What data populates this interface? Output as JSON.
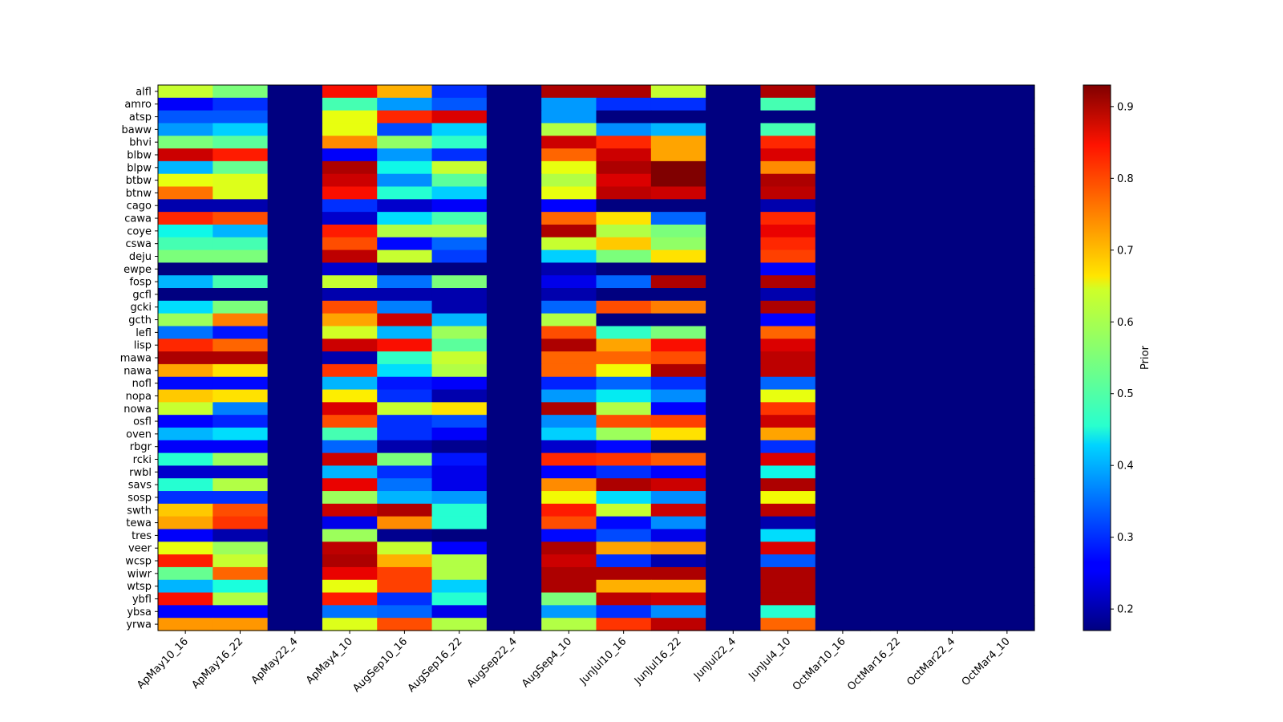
{
  "chart_data": {
    "type": "heatmap",
    "title": "",
    "xlabel": "",
    "ylabel": "",
    "colorbar_label": "Prior",
    "colormap": "jet",
    "value_range": [
      0.17,
      0.93
    ],
    "colorbar_ticks": [
      "0.2",
      "0.3",
      "0.4",
      "0.5",
      "0.6",
      "0.7",
      "0.8",
      "0.9"
    ],
    "x_categories": [
      "ApMay10_16",
      "ApMay16_22",
      "ApMay22_4",
      "ApMay4_10",
      "AugSep10_16",
      "AugSep16_22",
      "AugSep22_4",
      "AugSep4_10",
      "JunJul10_16",
      "JunJul16_22",
      "JunJul22_4",
      "JunJul4_10",
      "OctMar10_16",
      "OctMar16_22",
      "OctMar22_4",
      "OctMar4_10"
    ],
    "y_categories": [
      "alfl",
      "amro",
      "atsp",
      "baww",
      "bhvi",
      "blbw",
      "blpw",
      "btbw",
      "btnw",
      "cago",
      "cawa",
      "coye",
      "cswa",
      "deju",
      "ewpe",
      "fosp",
      "gcfl",
      "gcki",
      "gcth",
      "lefl",
      "lisp",
      "mawa",
      "nawa",
      "nofl",
      "nopa",
      "nowa",
      "osfl",
      "oven",
      "rbgr",
      "rcki",
      "rwbl",
      "savs",
      "sosp",
      "swth",
      "tewa",
      "tres",
      "veer",
      "wcsp",
      "wiwr",
      "wtsp",
      "ybfl",
      "ybsa",
      "yrwa"
    ],
    "values": [
      [
        0.62,
        0.55,
        0.17,
        0.85,
        0.72,
        0.3,
        0.17,
        0.9,
        0.9,
        0.62,
        0.17,
        0.9,
        0.17,
        0.17,
        0.17,
        0.17
      ],
      [
        0.25,
        0.3,
        0.17,
        0.5,
        0.38,
        0.33,
        0.17,
        0.38,
        0.3,
        0.3,
        0.17,
        0.5,
        0.17,
        0.17,
        0.17,
        0.17
      ],
      [
        0.33,
        0.33,
        0.17,
        0.65,
        0.83,
        0.87,
        0.17,
        0.38,
        0.17,
        0.17,
        0.17,
        0.17,
        0.17,
        0.17,
        0.17,
        0.17
      ],
      [
        0.38,
        0.42,
        0.17,
        0.65,
        0.32,
        0.42,
        0.17,
        0.6,
        0.37,
        0.4,
        0.17,
        0.5,
        0.17,
        0.17,
        0.17,
        0.17
      ],
      [
        0.55,
        0.52,
        0.17,
        0.75,
        0.57,
        0.48,
        0.17,
        0.88,
        0.83,
        0.73,
        0.17,
        0.83,
        0.17,
        0.17,
        0.17,
        0.17
      ],
      [
        0.88,
        0.84,
        0.17,
        0.25,
        0.38,
        0.3,
        0.17,
        0.78,
        0.88,
        0.73,
        0.17,
        0.87,
        0.17,
        0.17,
        0.17,
        0.17
      ],
      [
        0.4,
        0.53,
        0.17,
        0.9,
        0.45,
        0.62,
        0.17,
        0.65,
        0.9,
        0.93,
        0.17,
        0.75,
        0.17,
        0.17,
        0.17,
        0.17
      ],
      [
        0.65,
        0.64,
        0.17,
        0.88,
        0.37,
        0.52,
        0.17,
        0.6,
        0.87,
        0.93,
        0.17,
        0.9,
        0.17,
        0.17,
        0.17,
        0.17
      ],
      [
        0.77,
        0.64,
        0.17,
        0.85,
        0.47,
        0.42,
        0.17,
        0.65,
        0.89,
        0.88,
        0.17,
        0.89,
        0.17,
        0.17,
        0.17,
        0.17
      ],
      [
        0.2,
        0.2,
        0.17,
        0.3,
        0.22,
        0.25,
        0.17,
        0.26,
        0.17,
        0.17,
        0.17,
        0.2,
        0.17,
        0.17,
        0.17,
        0.17
      ],
      [
        0.83,
        0.8,
        0.17,
        0.22,
        0.43,
        0.5,
        0.17,
        0.78,
        0.68,
        0.34,
        0.17,
        0.83,
        0.17,
        0.17,
        0.17,
        0.17
      ],
      [
        0.45,
        0.4,
        0.17,
        0.84,
        0.6,
        0.6,
        0.17,
        0.9,
        0.6,
        0.55,
        0.17,
        0.86,
        0.17,
        0.17,
        0.17,
        0.17
      ],
      [
        0.5,
        0.5,
        0.17,
        0.8,
        0.27,
        0.34,
        0.17,
        0.62,
        0.7,
        0.57,
        0.17,
        0.83,
        0.17,
        0.17,
        0.17,
        0.17
      ],
      [
        0.55,
        0.55,
        0.17,
        0.89,
        0.62,
        0.31,
        0.17,
        0.42,
        0.55,
        0.68,
        0.17,
        0.81,
        0.17,
        0.17,
        0.17,
        0.17
      ],
      [
        0.17,
        0.17,
        0.17,
        0.22,
        0.17,
        0.17,
        0.17,
        0.2,
        0.17,
        0.17,
        0.17,
        0.25,
        0.17,
        0.17,
        0.17,
        0.17
      ],
      [
        0.4,
        0.5,
        0.17,
        0.62,
        0.35,
        0.55,
        0.17,
        0.24,
        0.34,
        0.9,
        0.17,
        0.9,
        0.17,
        0.17,
        0.17,
        0.17
      ],
      [
        0.17,
        0.17,
        0.17,
        0.2,
        0.2,
        0.2,
        0.17,
        0.2,
        0.17,
        0.17,
        0.17,
        0.2,
        0.17,
        0.17,
        0.17,
        0.17
      ],
      [
        0.43,
        0.55,
        0.17,
        0.8,
        0.36,
        0.2,
        0.17,
        0.34,
        0.8,
        0.76,
        0.17,
        0.9,
        0.17,
        0.17,
        0.17,
        0.17
      ],
      [
        0.58,
        0.76,
        0.17,
        0.73,
        0.88,
        0.4,
        0.17,
        0.6,
        0.17,
        0.17,
        0.17,
        0.26,
        0.17,
        0.17,
        0.17,
        0.17
      ],
      [
        0.35,
        0.28,
        0.17,
        0.63,
        0.4,
        0.58,
        0.17,
        0.8,
        0.48,
        0.55,
        0.17,
        0.78,
        0.17,
        0.17,
        0.17,
        0.17
      ],
      [
        0.83,
        0.78,
        0.17,
        0.88,
        0.85,
        0.52,
        0.17,
        0.9,
        0.73,
        0.85,
        0.17,
        0.87,
        0.17,
        0.17,
        0.17,
        0.17
      ],
      [
        0.9,
        0.9,
        0.17,
        0.2,
        0.48,
        0.62,
        0.17,
        0.78,
        0.78,
        0.8,
        0.17,
        0.89,
        0.17,
        0.17,
        0.17,
        0.17
      ],
      [
        0.73,
        0.68,
        0.17,
        0.82,
        0.43,
        0.6,
        0.17,
        0.78,
        0.66,
        0.9,
        0.17,
        0.89,
        0.17,
        0.17,
        0.17,
        0.17
      ],
      [
        0.27,
        0.27,
        0.17,
        0.4,
        0.28,
        0.25,
        0.17,
        0.29,
        0.34,
        0.3,
        0.17,
        0.34,
        0.17,
        0.17,
        0.17,
        0.17
      ],
      [
        0.7,
        0.68,
        0.17,
        0.67,
        0.3,
        0.2,
        0.17,
        0.38,
        0.44,
        0.37,
        0.17,
        0.65,
        0.17,
        0.17,
        0.17,
        0.17
      ],
      [
        0.62,
        0.36,
        0.17,
        0.87,
        0.62,
        0.68,
        0.17,
        0.9,
        0.6,
        0.26,
        0.17,
        0.82,
        0.17,
        0.17,
        0.17,
        0.17
      ],
      [
        0.26,
        0.29,
        0.17,
        0.8,
        0.3,
        0.32,
        0.17,
        0.37,
        0.8,
        0.81,
        0.17,
        0.88,
        0.17,
        0.17,
        0.17,
        0.17
      ],
      [
        0.4,
        0.43,
        0.17,
        0.5,
        0.3,
        0.25,
        0.17,
        0.42,
        0.58,
        0.68,
        0.17,
        0.73,
        0.17,
        0.17,
        0.17,
        0.17
      ],
      [
        0.25,
        0.25,
        0.17,
        0.34,
        0.2,
        0.18,
        0.17,
        0.22,
        0.27,
        0.17,
        0.17,
        0.3,
        0.17,
        0.17,
        0.17,
        0.17
      ],
      [
        0.47,
        0.58,
        0.17,
        0.88,
        0.55,
        0.28,
        0.17,
        0.83,
        0.82,
        0.79,
        0.17,
        0.87,
        0.17,
        0.17,
        0.17,
        0.17
      ],
      [
        0.22,
        0.22,
        0.17,
        0.4,
        0.3,
        0.24,
        0.17,
        0.26,
        0.3,
        0.26,
        0.17,
        0.45,
        0.17,
        0.17,
        0.17,
        0.17
      ],
      [
        0.47,
        0.6,
        0.17,
        0.86,
        0.35,
        0.24,
        0.17,
        0.75,
        0.9,
        0.88,
        0.17,
        0.9,
        0.17,
        0.17,
        0.17,
        0.17
      ],
      [
        0.3,
        0.3,
        0.17,
        0.58,
        0.4,
        0.38,
        0.17,
        0.66,
        0.43,
        0.37,
        0.17,
        0.66,
        0.17,
        0.17,
        0.17,
        0.17
      ],
      [
        0.7,
        0.8,
        0.17,
        0.88,
        0.9,
        0.47,
        0.17,
        0.84,
        0.62,
        0.88,
        0.17,
        0.89,
        0.17,
        0.17,
        0.17,
        0.17
      ],
      [
        0.73,
        0.82,
        0.17,
        0.24,
        0.75,
        0.47,
        0.17,
        0.8,
        0.27,
        0.37,
        0.17,
        0.2,
        0.17,
        0.17,
        0.17,
        0.17
      ],
      [
        0.25,
        0.2,
        0.17,
        0.58,
        0.18,
        0.17,
        0.17,
        0.27,
        0.32,
        0.24,
        0.17,
        0.43,
        0.17,
        0.17,
        0.17,
        0.17
      ],
      [
        0.65,
        0.58,
        0.17,
        0.89,
        0.62,
        0.26,
        0.17,
        0.9,
        0.73,
        0.74,
        0.17,
        0.87,
        0.17,
        0.17,
        0.17,
        0.17
      ],
      [
        0.84,
        0.62,
        0.17,
        0.9,
        0.72,
        0.6,
        0.17,
        0.88,
        0.3,
        0.2,
        0.17,
        0.33,
        0.17,
        0.17,
        0.17,
        0.17
      ],
      [
        0.53,
        0.78,
        0.17,
        0.86,
        0.81,
        0.6,
        0.17,
        0.9,
        0.9,
        0.9,
        0.17,
        0.9,
        0.17,
        0.17,
        0.17,
        0.17
      ],
      [
        0.4,
        0.46,
        0.17,
        0.65,
        0.81,
        0.42,
        0.17,
        0.9,
        0.72,
        0.72,
        0.17,
        0.9,
        0.17,
        0.17,
        0.17,
        0.17
      ],
      [
        0.85,
        0.6,
        0.17,
        0.84,
        0.3,
        0.47,
        0.17,
        0.55,
        0.89,
        0.88,
        0.17,
        0.9,
        0.17,
        0.17,
        0.17,
        0.17
      ],
      [
        0.26,
        0.26,
        0.17,
        0.35,
        0.34,
        0.24,
        0.17,
        0.38,
        0.3,
        0.37,
        0.17,
        0.47,
        0.17,
        0.17,
        0.17,
        0.17
      ],
      [
        0.74,
        0.74,
        0.17,
        0.64,
        0.8,
        0.6,
        0.17,
        0.6,
        0.82,
        0.89,
        0.17,
        0.78,
        0.17,
        0.17,
        0.17,
        0.17
      ]
    ]
  }
}
